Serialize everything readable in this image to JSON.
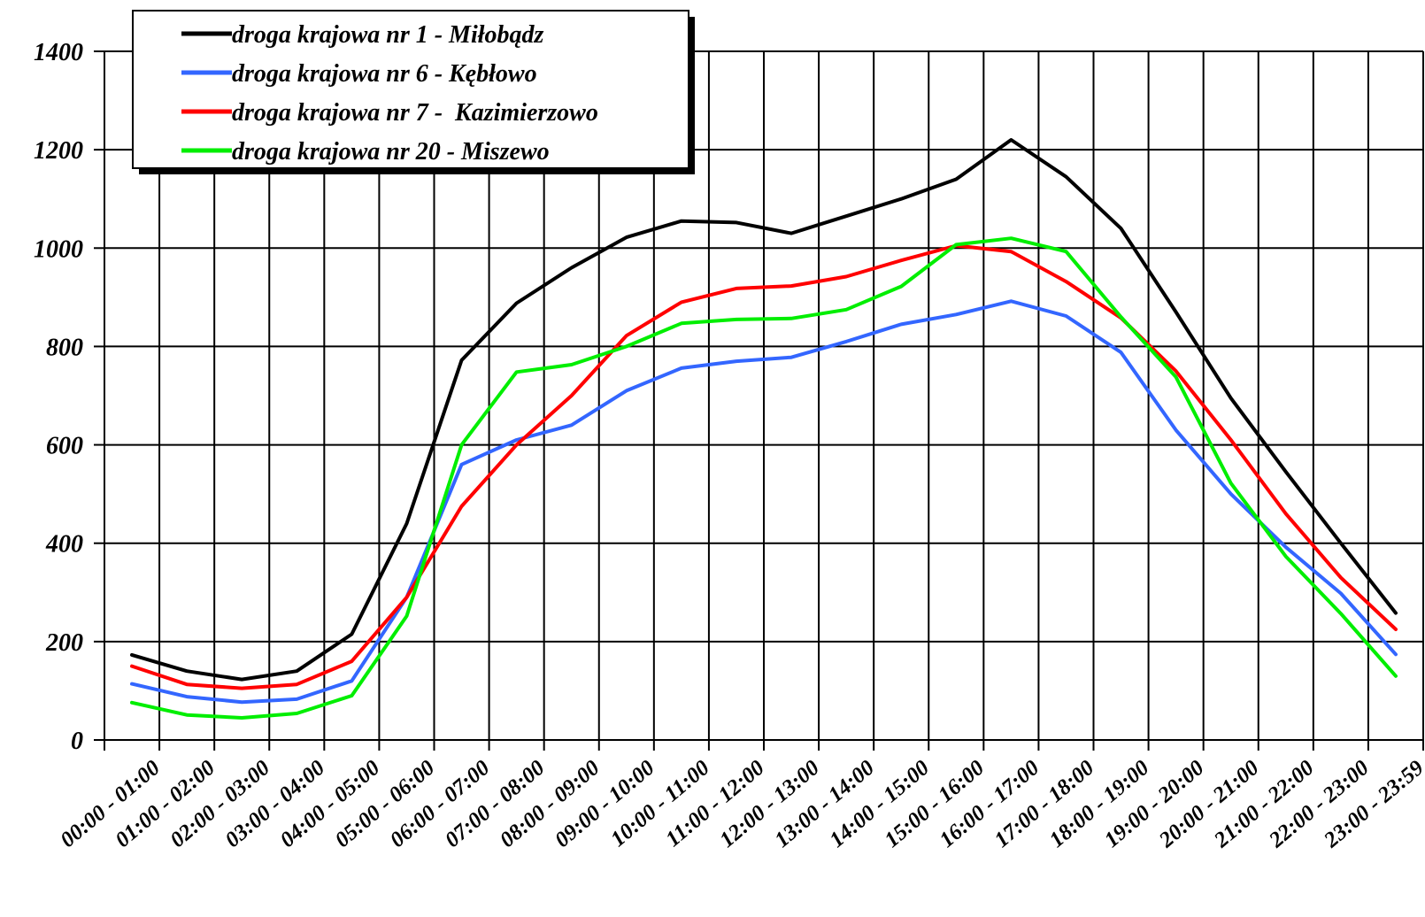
{
  "chart_data": {
    "type": "line",
    "title": "",
    "xlabel": "",
    "ylabel": "",
    "ylim": [
      0,
      1400
    ],
    "yticks": [
      0,
      200,
      400,
      600,
      800,
      1000,
      1200,
      1400
    ],
    "grid": true,
    "legend_position": "top-left",
    "categories": [
      "00:00 - 01:00",
      "01:00 - 02:00",
      "02:00 - 03:00",
      "03:00 - 04:00",
      "04:00 - 05:00",
      "05:00 - 06:00",
      "06:00 - 07:00",
      "07:00 - 08:00",
      "08:00 - 09:00",
      "09:00 - 10:00",
      "10:00 - 11:00",
      "11:00 - 12:00",
      "12:00 - 13:00",
      "13:00 - 14:00",
      "14:00 - 15:00",
      "15:00 - 16:00",
      "16:00 - 17:00",
      "17:00 - 18:00",
      "18:00 - 19:00",
      "19:00 - 20:00",
      "20:00 - 21:00",
      "21:00 - 22:00",
      "22:00 - 23:00",
      "23:00 - 23:59"
    ],
    "series": [
      {
        "name": "droga krajowa nr 1 - Miłobądz",
        "color": "#000000",
        "values": [
          173,
          140,
          123,
          140,
          215,
          440,
          772,
          888,
          960,
          1022,
          1055,
          1052,
          1030,
          1065,
          1100,
          1140,
          1220,
          1145,
          1040,
          870,
          695,
          545,
          400,
          258
        ]
      },
      {
        "name": "droga krajowa nr 6 - Kębłowo",
        "color": "#3366ff",
        "values": [
          114,
          88,
          77,
          83,
          120,
          290,
          560,
          610,
          640,
          710,
          756,
          770,
          778,
          810,
          845,
          865,
          892,
          862,
          788,
          630,
          500,
          392,
          298,
          174
        ]
      },
      {
        "name": "droga krajowa nr 7 -  Kazimierzowo",
        "color": "#ff0000",
        "values": [
          150,
          113,
          105,
          113,
          160,
          290,
          475,
          600,
          700,
          822,
          890,
          918,
          923,
          942,
          975,
          1005,
          993,
          932,
          858,
          750,
          610,
          460,
          330,
          225
        ]
      },
      {
        "name": "droga krajowa nr 20 - Miszewo",
        "color": "#00ee00",
        "values": [
          76,
          51,
          45,
          54,
          90,
          252,
          600,
          748,
          763,
          800,
          847,
          855,
          857,
          875,
          922,
          1007,
          1020,
          993,
          860,
          738,
          522,
          373,
          257,
          130
        ]
      }
    ]
  }
}
